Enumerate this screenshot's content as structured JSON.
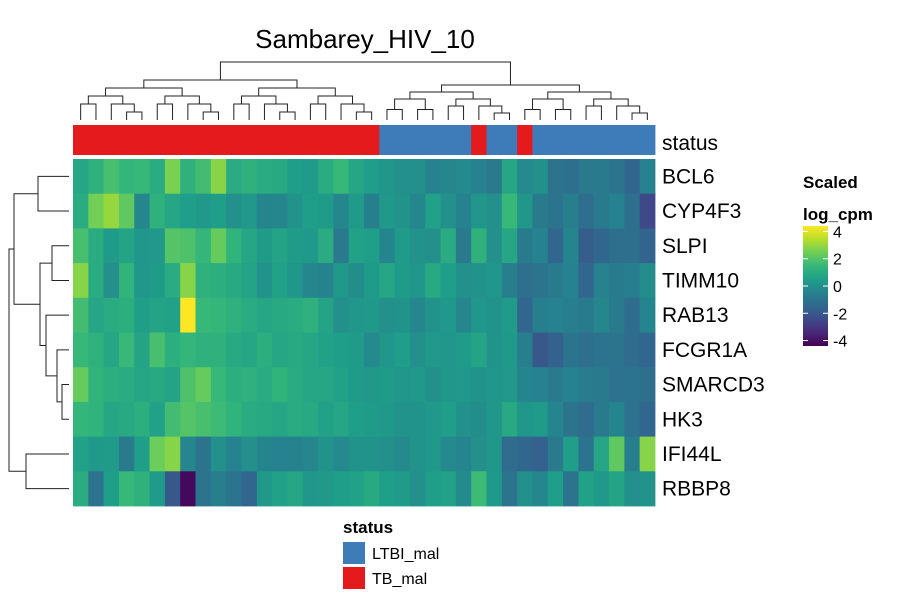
{
  "chart_data": {
    "type": "heatmap",
    "title": "Sambarey_HIV_10",
    "annotation_label": "status",
    "rows": [
      "BCL6",
      "CYP4F3",
      "SLPI",
      "TIMM10",
      "RAB13",
      "FCGR1A",
      "SMARCD3",
      "HK3",
      "IFI44L",
      "RBBP8"
    ],
    "status": [
      "TB_mal",
      "TB_mal",
      "TB_mal",
      "TB_mal",
      "TB_mal",
      "TB_mal",
      "TB_mal",
      "TB_mal",
      "TB_mal",
      "TB_mal",
      "TB_mal",
      "TB_mal",
      "TB_mal",
      "TB_mal",
      "TB_mal",
      "TB_mal",
      "TB_mal",
      "TB_mal",
      "TB_mal",
      "TB_mal",
      "LTBI_mal",
      "LTBI_mal",
      "LTBI_mal",
      "LTBI_mal",
      "LTBI_mal",
      "LTBI_mal",
      "TB_mal",
      "LTBI_mal",
      "LTBI_mal",
      "TB_mal",
      "LTBI_mal",
      "LTBI_mal",
      "LTBI_mal",
      "LTBI_mal",
      "LTBI_mal",
      "LTBI_mal",
      "LTBI_mal",
      "LTBI_mal"
    ],
    "values": [
      [
        0.8,
        1.2,
        1.8,
        1.4,
        1.5,
        1.0,
        2.6,
        1.2,
        1.7,
        2.8,
        1.0,
        1.2,
        1.0,
        0.9,
        0.5,
        0.4,
        1.0,
        1.5,
        0.8,
        0.5,
        0.2,
        0.0,
        0.0,
        -0.5,
        -0.3,
        -0.2,
        -0.5,
        -0.8,
        0.8,
        -0.2,
        0.0,
        -1.0,
        -1.2,
        -0.8,
        -0.8,
        -1.0,
        -1.5,
        -0.5
      ],
      [
        1.0,
        2.5,
        3.0,
        2.2,
        -0.3,
        1.2,
        0.8,
        0.5,
        0.3,
        0.5,
        0.0,
        0.3,
        -0.4,
        -0.3,
        0.1,
        0.5,
        0.4,
        -0.3,
        0.4,
        -0.6,
        0.3,
        0.1,
        -0.3,
        0.6,
        0.0,
        -0.5,
        0.2,
        0.0,
        1.5,
        0.2,
        -0.8,
        -1.0,
        -0.6,
        -1.2,
        -0.8,
        -0.5,
        -1.2,
        -2.5
      ],
      [
        1.8,
        1.0,
        0.4,
        0.7,
        0.2,
        0.3,
        2.0,
        1.9,
        1.4,
        2.3,
        1.3,
        0.8,
        0.4,
        0.7,
        0.4,
        0.3,
        1.0,
        -0.8,
        0.6,
        0.5,
        -0.4,
        0.4,
        0.1,
        0.0,
        1.0,
        -0.8,
        1.2,
        0.0,
        0.8,
        -0.8,
        -0.5,
        -1.5,
        -0.4,
        -1.8,
        -1.5,
        -1.2,
        -1.2,
        -1.6
      ],
      [
        2.8,
        1.0,
        0.0,
        1.3,
        0.2,
        0.4,
        1.0,
        2.8,
        1.2,
        1.1,
        0.9,
        0.7,
        0.1,
        0.6,
        0.2,
        -0.3,
        -0.5,
        0.3,
        -0.1,
        0.4,
        0.8,
        0.4,
        0.2,
        0.9,
        0.5,
        0.0,
        0.1,
        0.2,
        -0.6,
        -1.2,
        -1.0,
        -0.8,
        -0.5,
        -1.5,
        -0.5,
        -0.8,
        -0.6,
        -0.1
      ],
      [
        1.7,
        0.8,
        1.0,
        1.1,
        0.5,
        0.7,
        0.6,
        4.4,
        1.5,
        1.4,
        1.2,
        1.0,
        0.8,
        0.9,
        1.0,
        1.2,
        0.7,
        0.0,
        0.2,
        0.3,
        0.0,
        0.1,
        -0.3,
        0.1,
        0.3,
        -0.3,
        0.2,
        0.1,
        0.4,
        -1.5,
        -0.6,
        -0.5,
        -0.6,
        -0.8,
        -0.3,
        -0.8,
        -1.3,
        -0.4
      ],
      [
        1.5,
        1.2,
        0.8,
        1.5,
        0.7,
        1.8,
        1.1,
        1.4,
        1.2,
        1.2,
        0.9,
        0.8,
        1.1,
        0.8,
        0.9,
        0.8,
        0.6,
        0.5,
        0.4,
        -0.2,
        0.2,
        0.5,
        0.0,
        0.3,
        0.2,
        0.4,
        0.7,
        0.1,
        0.3,
        -0.6,
        -2.0,
        -1.7,
        -1.0,
        -1.2,
        -1.0,
        -1.0,
        -1.3,
        -1.5
      ],
      [
        2.3,
        1.3,
        1.1,
        1.0,
        0.8,
        0.9,
        0.7,
        1.9,
        2.3,
        1.5,
        1.1,
        1.2,
        1.0,
        1.3,
        1.0,
        0.8,
        0.8,
        0.6,
        0.4,
        0.3,
        0.4,
        0.2,
        0.3,
        0.0,
        0.2,
        0.3,
        0.1,
        0.2,
        0.3,
        -0.4,
        -0.5,
        -0.8,
        -0.5,
        -0.7,
        -0.8,
        -1.1,
        -1.0,
        -1.2
      ],
      [
        1.4,
        1.3,
        0.8,
        0.9,
        1.1,
        0.6,
        1.7,
        2.0,
        1.8,
        1.6,
        1.3,
        1.0,
        0.9,
        0.8,
        1.0,
        0.9,
        0.6,
        0.8,
        0.5,
        0.4,
        0.3,
        0.1,
        0.1,
        0.3,
        0.5,
        0.0,
        -0.1,
        0.2,
        0.9,
        0.2,
        0.4,
        -0.4,
        -1.0,
        -1.3,
        -0.8,
        -0.4,
        -1.1,
        -1.5
      ],
      [
        0.6,
        0.3,
        0.4,
        -0.8,
        0.5,
        2.4,
        2.8,
        -0.3,
        -1.0,
        0.0,
        -0.5,
        0.0,
        -0.4,
        -0.5,
        -0.5,
        -0.3,
        0.1,
        -0.2,
        0.1,
        0.1,
        0.0,
        -0.2,
        0.1,
        0.3,
        -0.2,
        -0.4,
        0.0,
        0.2,
        -1.3,
        -1.5,
        -1.7,
        -0.8,
        0.5,
        -1.0,
        0.8,
        2.2,
        -0.6,
        2.8
      ],
      [
        1.0,
        -1.0,
        0.5,
        1.5,
        1.2,
        0.4,
        -2.0,
        -4.2,
        -1.0,
        -0.6,
        -1.0,
        -1.5,
        0.3,
        0.6,
        0.8,
        0.2,
        0.3,
        0.5,
        0.6,
        0.9,
        0.5,
        0.4,
        0.0,
        0.5,
        0.6,
        -0.2,
        1.6,
        0.3,
        -1.0,
        0.0,
        -0.3,
        0.5,
        -1.0,
        0.6,
        0.3,
        0.7,
        0.0,
        0.1
      ]
    ],
    "legend": {
      "title_line1": "Scaled",
      "title_line2": "log_cpm",
      "ticks": [
        4,
        2,
        0,
        -2,
        -4
      ],
      "tick_labels": [
        "4",
        "2",
        "0",
        "-2",
        "-4"
      ],
      "range": [
        -4.4,
        4.4
      ],
      "colormap": "viridis"
    },
    "status_legend": {
      "title": "status",
      "items": [
        {
          "label": "LTBI_mal",
          "color": "#3d7cb9"
        },
        {
          "label": "TB_mal",
          "color": "#e41a1c"
        }
      ]
    },
    "colors": {
      "TB_mal": "#e41a1c",
      "LTBI_mal": "#3d7cb9"
    }
  }
}
